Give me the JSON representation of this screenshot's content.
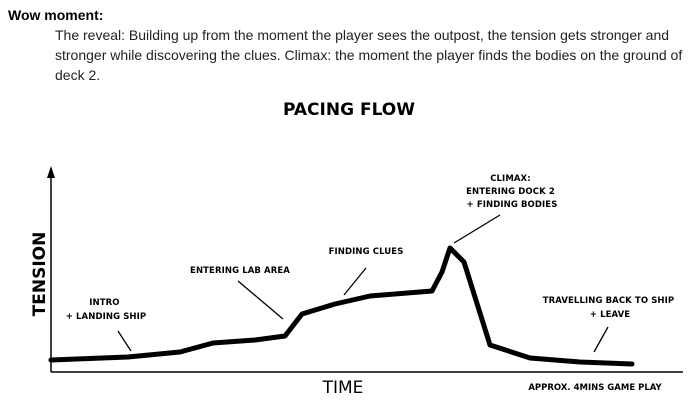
{
  "document": {
    "heading": "Wow moment:",
    "paragraph": "The reveal: Building up from the moment the player sees the outpost, the tension gets stronger and stronger while discovering the clues. Climax: the moment the player finds the bodies on the ground of deck 2."
  },
  "chart_data": {
    "type": "line",
    "title": "PACING FLOW",
    "xlabel": "TIME",
    "ylabel": "TENSION",
    "footnote": "APPROX. 4MINS GAME PLAY",
    "annotations": [
      {
        "lines": [
          "INTRO",
          "+ LANDING SHIP"
        ]
      },
      {
        "lines": [
          "ENTERING LAB AREA"
        ]
      },
      {
        "lines": [
          "FINDING CLUES"
        ]
      },
      {
        "lines": [
          "CLIMAX:",
          "ENTERING DOCK 2",
          "+ FINDING BODIES"
        ]
      },
      {
        "lines": [
          "TRAVELLING BACK TO SHIP",
          "+ LEAVE"
        ]
      }
    ]
  }
}
